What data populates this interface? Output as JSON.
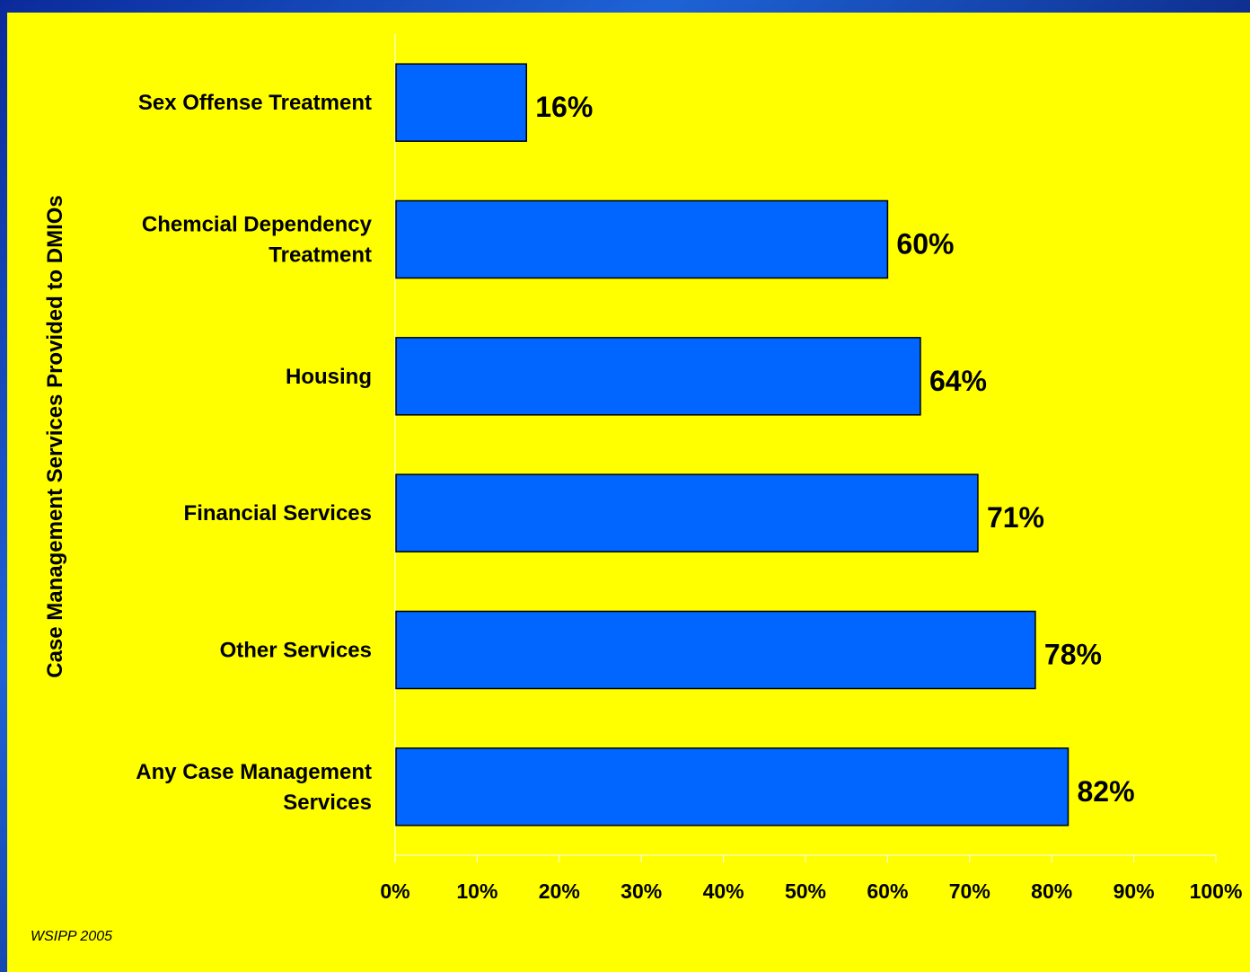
{
  "chart_data": {
    "type": "bar",
    "orientation": "horizontal",
    "categories": [
      [
        "Sex Offense Treatment"
      ],
      [
        "Chemcial Dependency",
        "Treatment"
      ],
      [
        "Housing"
      ],
      [
        "Financial Services"
      ],
      [
        "Other Services"
      ],
      [
        "Any Case Management",
        "Services"
      ]
    ],
    "values": [
      16,
      60,
      64,
      71,
      78,
      82
    ],
    "data_labels": [
      "16%",
      "60%",
      "64%",
      "71%",
      "78%",
      "82%"
    ],
    "xlim": [
      0,
      100
    ],
    "xticks": [
      "0%",
      "10%",
      "20%",
      "30%",
      "40%",
      "50%",
      "60%",
      "70%",
      "80%",
      "90%",
      "100%"
    ],
    "ylabel": "Case Management Services Provided to DMIOs",
    "xlabel": "",
    "title": "",
    "grid": false,
    "legend": "none",
    "bar_color": "#0066ff",
    "background_color": "#ffff00"
  },
  "footer": {
    "source": "WSIPP 2005"
  }
}
